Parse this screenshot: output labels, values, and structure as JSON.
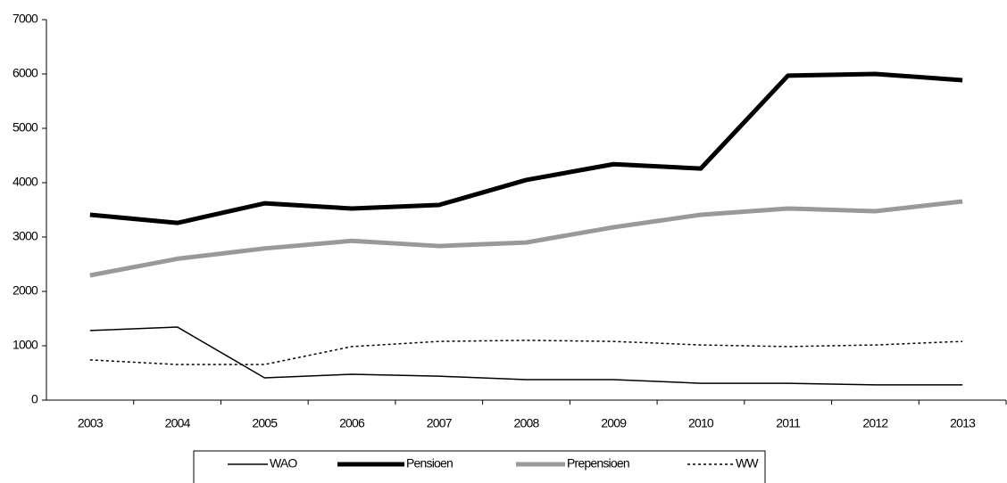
{
  "chart_data": {
    "type": "line",
    "categories": [
      "2003",
      "2004",
      "2005",
      "2006",
      "2007",
      "2008",
      "2009",
      "2010",
      "2011",
      "2012",
      "2013"
    ],
    "series": [
      {
        "name": "WAO",
        "color": "#000000",
        "width": 1.5,
        "dash": "solid",
        "values": [
          1280,
          1345,
          410,
          475,
          440,
          377,
          377,
          310,
          310,
          280,
          280
        ]
      },
      {
        "name": "Pensioen",
        "color": "#000000",
        "width": 5,
        "dash": "solid",
        "values": [
          3410,
          3260,
          3620,
          3525,
          3590,
          4050,
          4340,
          4260,
          5970,
          6000,
          5885
        ]
      },
      {
        "name": "Prepensioen",
        "color": "#999999",
        "width": 5,
        "dash": "solid",
        "values": [
          2295,
          2600,
          2790,
          2930,
          2835,
          2900,
          3180,
          3410,
          3525,
          3475,
          3655
        ]
      },
      {
        "name": "WW",
        "color": "#000000",
        "width": 1.5,
        "dash": "dotted",
        "values": [
          740,
          655,
          655,
          985,
          1080,
          1100,
          1080,
          1015,
          985,
          1015,
          1080
        ]
      }
    ],
    "ylim": [
      0,
      7000
    ],
    "yticks": [
      0,
      1000,
      2000,
      3000,
      4000,
      5000,
      6000,
      7000
    ],
    "grid": false,
    "legend": "bottom"
  }
}
